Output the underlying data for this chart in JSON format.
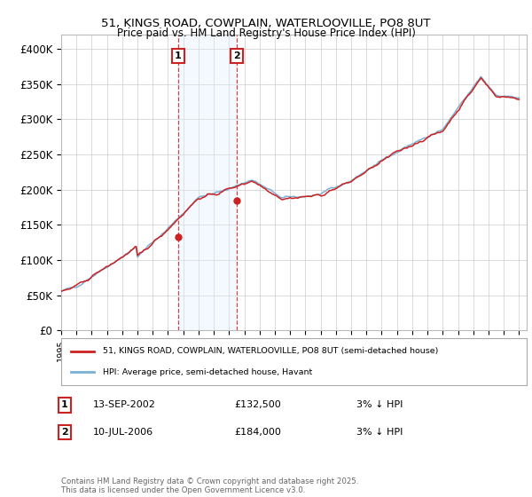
{
  "title_line1": "51, KINGS ROAD, COWPLAIN, WATERLOOVILLE, PO8 8UT",
  "title_line2": "Price paid vs. HM Land Registry's House Price Index (HPI)",
  "ylim": [
    0,
    420000
  ],
  "yticks": [
    0,
    50000,
    100000,
    150000,
    200000,
    250000,
    300000,
    350000,
    400000
  ],
  "ytick_labels": [
    "£0",
    "£50K",
    "£100K",
    "£150K",
    "£200K",
    "£250K",
    "£300K",
    "£350K",
    "£400K"
  ],
  "hpi_color": "#7bafd4",
  "price_color": "#cc2222",
  "shade_color": "#ddeeff",
  "purchase1_year": 2002.708,
  "purchase1_price": 132500,
  "purchase1_date": "13-SEP-2002",
  "purchase1_note": "3% ↓ HPI",
  "purchase2_year": 2006.542,
  "purchase2_price": 184000,
  "purchase2_date": "10-JUL-2006",
  "purchase2_note": "3% ↓ HPI",
  "legend_label_red": "51, KINGS ROAD, COWPLAIN, WATERLOOVILLE, PO8 8UT (semi-detached house)",
  "legend_label_blue": "HPI: Average price, semi-detached house, Havant",
  "footer": "Contains HM Land Registry data © Crown copyright and database right 2025.\nThis data is licensed under the Open Government Licence v3.0.",
  "bg_color": "#f0f0f0"
}
